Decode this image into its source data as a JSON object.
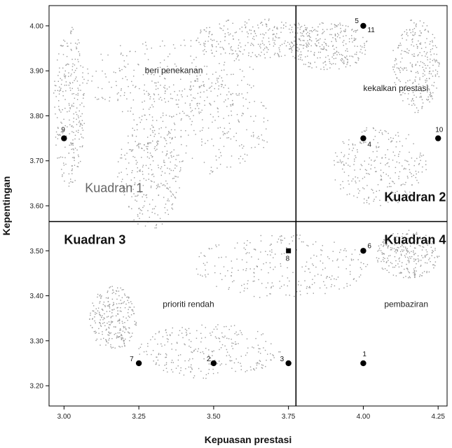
{
  "chart_data": {
    "type": "scatter",
    "xlabel": "Kepuasan prestasi",
    "ylabel": "Kepentingan",
    "xlim": [
      2.95,
      4.28
    ],
    "ylim": [
      3.155,
      4.045
    ],
    "x_ticks": [
      "3.00",
      "3.25",
      "3.50",
      "3.75",
      "4.00",
      "4.25"
    ],
    "x_tick_values": [
      3.0,
      3.25,
      3.5,
      3.75,
      4.0,
      4.25
    ],
    "y_ticks": [
      "3.20",
      "3.30",
      "3.40",
      "3.50",
      "3.60",
      "3.70",
      "3.80",
      "3.90",
      "4.00"
    ],
    "y_tick_values": [
      3.2,
      3.3,
      3.4,
      3.5,
      3.6,
      3.7,
      3.8,
      3.9,
      4.0
    ],
    "divider_x": 3.775,
    "divider_y": 3.565,
    "points": [
      {
        "label": "1",
        "x": 4.0,
        "y": 3.25
      },
      {
        "label": "2",
        "x": 3.5,
        "y": 3.25
      },
      {
        "label": "3",
        "x": 3.75,
        "y": 3.25
      },
      {
        "label": "4",
        "x": 4.0,
        "y": 3.75
      },
      {
        "label": "5",
        "x": 4.0,
        "y": 4.0
      },
      {
        "label": "6",
        "x": 4.0,
        "y": 3.5
      },
      {
        "label": "7",
        "x": 3.25,
        "y": 3.25
      },
      {
        "label": "8",
        "x": 3.75,
        "y": 3.5
      },
      {
        "label": "9",
        "x": 3.0,
        "y": 3.75
      },
      {
        "label": "10",
        "x": 4.25,
        "y": 3.75
      },
      {
        "label": "11",
        "x": 4.0,
        "y": 4.0
      }
    ],
    "quadrant_labels": [
      {
        "text": "Kuadran 1",
        "x": 3.07,
        "y": 3.63
      },
      {
        "text": "Kuadran 2",
        "x": 4.07,
        "y": 3.61
      },
      {
        "text": "Kuadran 3",
        "x": 3.0,
        "y": 3.515
      },
      {
        "text": "Kuadran 4",
        "x": 4.07,
        "y": 3.515
      }
    ],
    "zone_labels": [
      {
        "text": "beri penekanan",
        "x": 3.27,
        "y": 3.895
      },
      {
        "text": "kekalkan prestasi",
        "x": 4.0,
        "y": 3.855
      },
      {
        "text": "prioriti rendah",
        "x": 3.33,
        "y": 3.375
      },
      {
        "text": "pembaziran",
        "x": 4.07,
        "y": 3.375
      }
    ]
  }
}
